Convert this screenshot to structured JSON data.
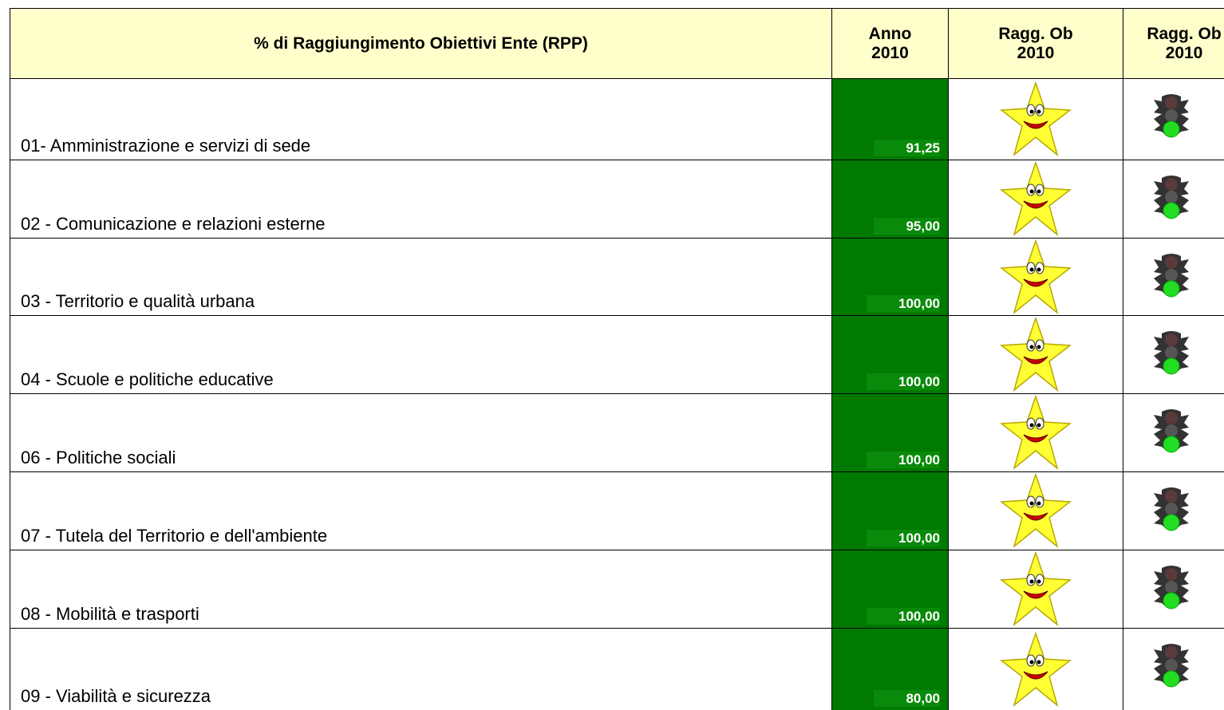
{
  "table": {
    "header": {
      "title": "% di Raggiungimento Obiettivi Ente (RPP)",
      "columns": [
        [
          "Anno",
          "2010"
        ],
        [
          "Ragg. Ob",
          "2010"
        ],
        [
          "Ragg. Ob",
          "2010"
        ]
      ]
    },
    "rows": [
      {
        "label": "01- Amministrazione e servizi di sede",
        "value": "91,25"
      },
      {
        "label": "02 - Comunicazione e relazioni esterne",
        "value": "95,00"
      },
      {
        "label": "03 - Territorio e qualità urbana",
        "value": "100,00"
      },
      {
        "label": "04 - Scuole e politiche educative",
        "value": "100,00"
      },
      {
        "label": "06 - Politiche sociali",
        "value": "100,00"
      },
      {
        "label": "07 - Tutela del Territorio e dell'ambiente",
        "value": "100,00"
      },
      {
        "label": "08 - Mobilità e trasporti",
        "value": "100,00"
      },
      {
        "label": "09 - Viabilità e sicurezza",
        "value": "80,00"
      }
    ]
  }
}
